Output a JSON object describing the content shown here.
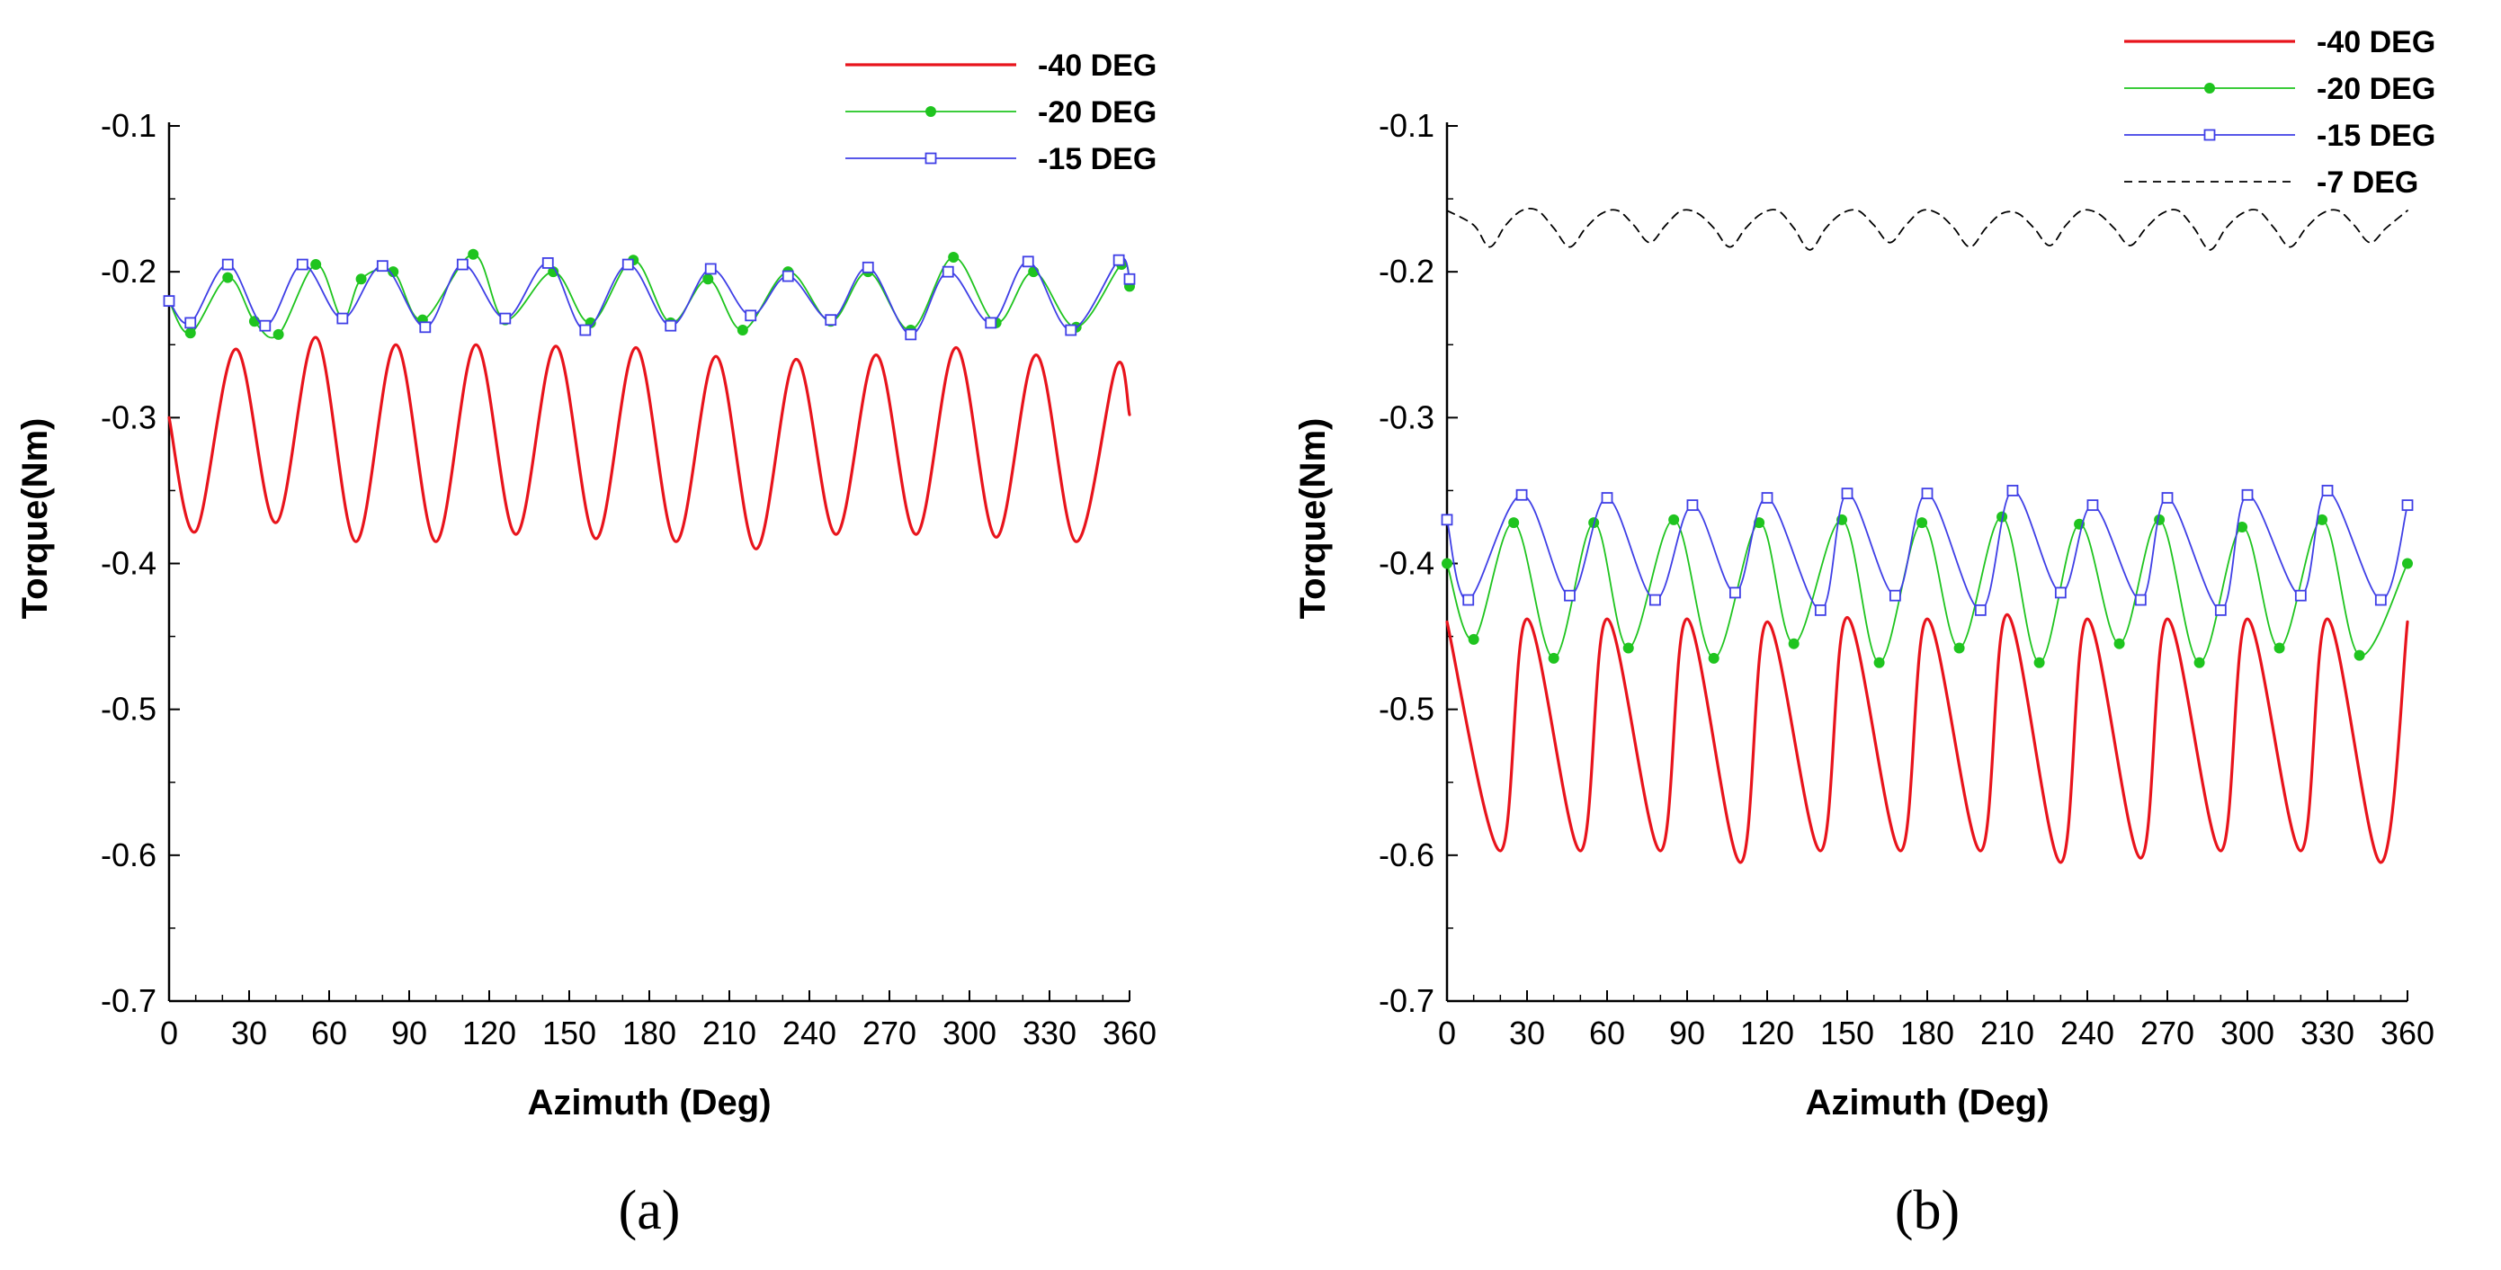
{
  "chart_data": [
    {
      "type": "line",
      "panel_label": "(a)",
      "xlabel": "Azimuth (Deg)",
      "ylabel": "Torque(Nm)",
      "xlim": [
        0,
        360
      ],
      "ylim": [
        -0.7,
        -0.1
      ],
      "xticks": [
        0,
        30,
        60,
        90,
        120,
        150,
        180,
        210,
        240,
        270,
        300,
        330,
        360
      ],
      "yticks": [
        -0.7,
        -0.6,
        -0.5,
        -0.4,
        -0.3,
        -0.2,
        -0.1
      ],
      "grid": false,
      "legend": "top-right",
      "series": [
        {
          "name": "-40 DEG",
          "color": "#e8141c",
          "marker": "none",
          "x": [
            0,
            10,
            25,
            40,
            55,
            70,
            85,
            100,
            115,
            130,
            145,
            160,
            175,
            190,
            205,
            220,
            235,
            250,
            265,
            280,
            295,
            310,
            325,
            340,
            355,
            360
          ],
          "y": [
            -0.3,
            -0.378,
            -0.253,
            -0.372,
            -0.245,
            -0.385,
            -0.25,
            -0.385,
            -0.25,
            -0.38,
            -0.251,
            -0.383,
            -0.252,
            -0.385,
            -0.258,
            -0.39,
            -0.26,
            -0.38,
            -0.257,
            -0.38,
            -0.252,
            -0.382,
            -0.257,
            -0.385,
            -0.265,
            -0.298
          ]
        },
        {
          "name": "-20 DEG",
          "color": "#1fc41f",
          "marker": "circle",
          "x": [
            0,
            8,
            22,
            32,
            41,
            55,
            65,
            72,
            84,
            95,
            114,
            126,
            144,
            158,
            174,
            188,
            202,
            215,
            232,
            248,
            262,
            278,
            294,
            310,
            324,
            340,
            357,
            360
          ],
          "y": [
            -0.22,
            -0.242,
            -0.204,
            -0.234,
            -0.243,
            -0.195,
            -0.232,
            -0.205,
            -0.2,
            -0.233,
            -0.188,
            -0.233,
            -0.2,
            -0.235,
            -0.192,
            -0.235,
            -0.205,
            -0.24,
            -0.2,
            -0.234,
            -0.2,
            -0.24,
            -0.19,
            -0.235,
            -0.2,
            -0.238,
            -0.195,
            -0.21
          ]
        },
        {
          "name": "-15 DEG",
          "color": "#3f3fe6",
          "marker": "square",
          "x": [
            0,
            8,
            22,
            36,
            50,
            65,
            80,
            96,
            110,
            126,
            142,
            156,
            172,
            188,
            203,
            218,
            232,
            248,
            262,
            278,
            292,
            308,
            322,
            338,
            356,
            360
          ],
          "y": [
            -0.22,
            -0.235,
            -0.195,
            -0.237,
            -0.195,
            -0.232,
            -0.196,
            -0.238,
            -0.195,
            -0.232,
            -0.194,
            -0.24,
            -0.195,
            -0.237,
            -0.198,
            -0.23,
            -0.203,
            -0.233,
            -0.197,
            -0.243,
            -0.2,
            -0.235,
            -0.193,
            -0.24,
            -0.192,
            -0.205
          ]
        }
      ]
    },
    {
      "type": "line",
      "panel_label": "(b)",
      "xlabel": "Azimuth (Deg)",
      "ylabel": "Torque(Nm)",
      "xlim": [
        0,
        360
      ],
      "ylim": [
        -0.7,
        -0.1
      ],
      "xticks": [
        0,
        30,
        60,
        90,
        120,
        150,
        180,
        210,
        240,
        270,
        300,
        330,
        360
      ],
      "yticks": [
        -0.7,
        -0.6,
        -0.5,
        -0.4,
        -0.3,
        -0.2,
        -0.1
      ],
      "grid": false,
      "legend": "top-right",
      "series": [
        {
          "name": "-40 DEG",
          "color": "#e8141c",
          "marker": "none",
          "x": [
            0,
            20,
            30,
            50,
            60,
            80,
            90,
            110,
            120,
            140,
            150,
            170,
            180,
            200,
            210,
            230,
            240,
            260,
            270,
            290,
            300,
            320,
            330,
            350,
            360
          ],
          "y": [
            -0.44,
            -0.597,
            -0.438,
            -0.597,
            -0.438,
            -0.597,
            -0.438,
            -0.605,
            -0.44,
            -0.597,
            -0.437,
            -0.597,
            -0.438,
            -0.597,
            -0.435,
            -0.605,
            -0.438,
            -0.602,
            -0.438,
            -0.597,
            -0.438,
            -0.597,
            -0.438,
            -0.605,
            -0.44
          ]
        },
        {
          "name": "-20 DEG",
          "color": "#1fc41f",
          "marker": "circle",
          "x": [
            0,
            10,
            25,
            40,
            55,
            68,
            85,
            100,
            117,
            130,
            148,
            162,
            178,
            192,
            208,
            222,
            237,
            252,
            267,
            282,
            298,
            312,
            328,
            342,
            360
          ],
          "y": [
            -0.4,
            -0.452,
            -0.372,
            -0.465,
            -0.372,
            -0.458,
            -0.37,
            -0.465,
            -0.372,
            -0.455,
            -0.37,
            -0.468,
            -0.372,
            -0.458,
            -0.368,
            -0.468,
            -0.373,
            -0.455,
            -0.37,
            -0.468,
            -0.375,
            -0.458,
            -0.37,
            -0.463,
            -0.4
          ]
        },
        {
          "name": "-15 DEG",
          "color": "#3f3fe6",
          "marker": "square",
          "x": [
            0,
            8,
            28,
            46,
            60,
            78,
            92,
            108,
            120,
            140,
            150,
            168,
            180,
            200,
            212,
            230,
            242,
            260,
            270,
            290,
            300,
            320,
            330,
            350,
            360
          ],
          "y": [
            -0.37,
            -0.425,
            -0.353,
            -0.422,
            -0.355,
            -0.425,
            -0.36,
            -0.42,
            -0.355,
            -0.432,
            -0.352,
            -0.422,
            -0.352,
            -0.432,
            -0.35,
            -0.42,
            -0.36,
            -0.425,
            -0.355,
            -0.432,
            -0.353,
            -0.422,
            -0.35,
            -0.425,
            -0.36
          ]
        },
        {
          "name": "-7 DEG",
          "color": "#000000",
          "marker": "none",
          "dashed": true,
          "x": [
            0,
            10,
            16,
            22,
            28,
            34,
            40,
            46,
            52,
            58,
            64,
            70,
            76,
            82,
            88,
            94,
            100,
            106,
            112,
            118,
            124,
            130,
            136,
            142,
            148,
            154,
            160,
            166,
            172,
            178,
            184,
            190,
            196,
            202,
            208,
            214,
            220,
            226,
            232,
            238,
            244,
            250,
            256,
            262,
            268,
            274,
            280,
            286,
            292,
            298,
            304,
            310,
            316,
            322,
            328,
            334,
            340,
            346,
            352,
            360
          ],
          "y": [
            -0.158,
            -0.168,
            -0.183,
            -0.168,
            -0.158,
            -0.158,
            -0.17,
            -0.183,
            -0.17,
            -0.16,
            -0.158,
            -0.168,
            -0.18,
            -0.168,
            -0.158,
            -0.16,
            -0.17,
            -0.183,
            -0.17,
            -0.16,
            -0.158,
            -0.17,
            -0.185,
            -0.17,
            -0.16,
            -0.158,
            -0.168,
            -0.18,
            -0.168,
            -0.158,
            -0.16,
            -0.17,
            -0.183,
            -0.17,
            -0.16,
            -0.16,
            -0.17,
            -0.182,
            -0.168,
            -0.158,
            -0.16,
            -0.17,
            -0.182,
            -0.17,
            -0.16,
            -0.158,
            -0.17,
            -0.185,
            -0.17,
            -0.16,
            -0.158,
            -0.17,
            -0.183,
            -0.17,
            -0.16,
            -0.158,
            -0.168,
            -0.18,
            -0.17,
            -0.158
          ]
        }
      ]
    }
  ]
}
